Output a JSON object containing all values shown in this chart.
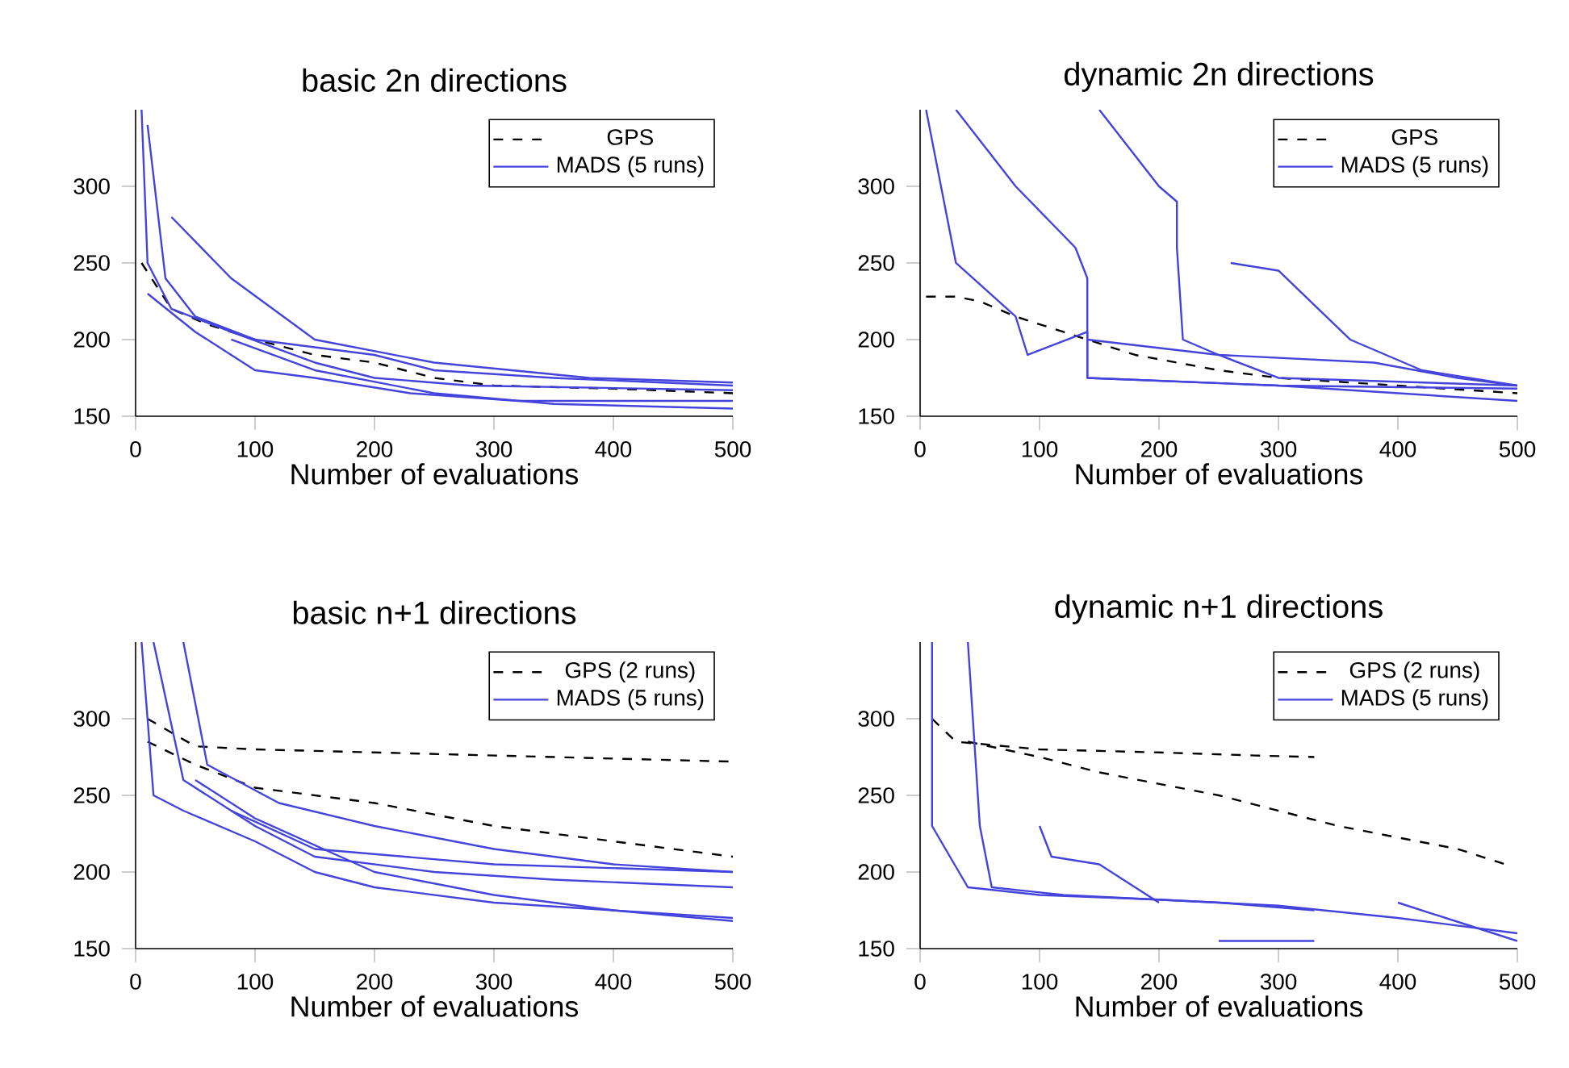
{
  "chart_data": [
    {
      "type": "line",
      "title": "basic 2n directions",
      "xlabel": "Number of evaluations",
      "xlim": [
        0,
        500
      ],
      "xticks": [
        0,
        100,
        200,
        300,
        400,
        500
      ],
      "ylim": [
        150,
        350
      ],
      "yticks": [
        150,
        200,
        250,
        300
      ],
      "legend": "top right",
      "series": [
        {
          "name": "GPS",
          "color": "#000000",
          "line_style": "dashed",
          "x": [
            5,
            30,
            60,
            100,
            150,
            200,
            250,
            300,
            400,
            500
          ],
          "values": [
            250,
            220,
            210,
            200,
            190,
            185,
            175,
            170,
            168,
            165
          ]
        },
        {
          "name": "MADS (5 runs)",
          "color": "#4444dd",
          "line_style": "solid",
          "x": [
            5,
            10,
            30,
            80,
            150,
            200,
            280,
            500
          ],
          "values": [
            350,
            250,
            220,
            205,
            185,
            175,
            170,
            167
          ]
        },
        {
          "color": "#4444dd",
          "line_style": "solid",
          "x": [
            10,
            25,
            50,
            100,
            200,
            250,
            350,
            500
          ],
          "values": [
            340,
            240,
            215,
            200,
            190,
            180,
            175,
            170
          ]
        },
        {
          "color": "#4444dd",
          "line_style": "solid",
          "x": [
            30,
            80,
            150,
            250,
            380,
            500
          ],
          "values": [
            280,
            240,
            200,
            185,
            175,
            172
          ]
        },
        {
          "color": "#4444dd",
          "line_style": "solid",
          "x": [
            10,
            50,
            100,
            150,
            230,
            320,
            500
          ],
          "values": [
            230,
            205,
            180,
            175,
            165,
            160,
            160
          ]
        },
        {
          "color": "#4444dd",
          "line_style": "solid",
          "x": [
            80,
            150,
            250,
            350,
            500
          ],
          "values": [
            200,
            180,
            165,
            158,
            155
          ]
        }
      ]
    },
    {
      "type": "line",
      "title": "dynamic 2n directions",
      "xlabel": "Number of evaluations",
      "xlim": [
        0,
        500
      ],
      "xticks": [
        0,
        100,
        200,
        300,
        400,
        500
      ],
      "ylim": [
        150,
        350
      ],
      "yticks": [
        150,
        200,
        250,
        300
      ],
      "legend": "top right",
      "series": [
        {
          "name": "GPS",
          "color": "#000000",
          "line_style": "dashed",
          "x": [
            5,
            30,
            50,
            80,
            120,
            180,
            250,
            300,
            400,
            500
          ],
          "values": [
            228,
            228,
            225,
            215,
            205,
            190,
            180,
            175,
            170,
            165
          ]
        },
        {
          "name": "MADS (5 runs)",
          "color": "#4444dd",
          "line_style": "solid",
          "x": [
            5,
            30,
            80,
            90,
            140,
            140,
            300,
            500
          ],
          "values": [
            350,
            250,
            215,
            190,
            205,
            175,
            170,
            168
          ]
        },
        {
          "color": "#4444dd",
          "line_style": "solid",
          "x": [
            30,
            80,
            130,
            140,
            140,
            300,
            500
          ],
          "values": [
            350,
            300,
            260,
            240,
            175,
            170,
            160
          ]
        },
        {
          "color": "#4444dd",
          "line_style": "solid",
          "x": [
            150,
            200,
            215,
            215,
            220,
            250,
            300,
            500
          ],
          "values": [
            350,
            300,
            290,
            260,
            200,
            190,
            175,
            170
          ]
        },
        {
          "color": "#4444dd",
          "line_style": "solid",
          "x": [
            260,
            300,
            360,
            420,
            500
          ],
          "values": [
            250,
            245,
            200,
            180,
            170
          ]
        },
        {
          "color": "#4444dd",
          "line_style": "solid",
          "x": [
            140,
            250,
            380,
            450,
            500
          ],
          "values": [
            200,
            190,
            185,
            175,
            170
          ]
        }
      ]
    },
    {
      "type": "line",
      "title": "basic n+1 directions",
      "xlabel": "Number of evaluations",
      "xlim": [
        0,
        500
      ],
      "xticks": [
        0,
        100,
        200,
        300,
        400,
        500
      ],
      "ylim": [
        150,
        350
      ],
      "yticks": [
        150,
        200,
        250,
        300
      ],
      "legend": "top right",
      "series": [
        {
          "name": "GPS (2 runs)",
          "color": "#000000",
          "line_style": "dashed",
          "x": [
            10,
            50,
            100,
            200,
            300,
            400,
            500
          ],
          "values": [
            300,
            282,
            280,
            278,
            276,
            274,
            272
          ]
        },
        {
          "color": "#000000",
          "line_style": "dashed",
          "x": [
            10,
            50,
            100,
            200,
            300,
            400,
            500
          ],
          "values": [
            285,
            270,
            255,
            245,
            230,
            220,
            210
          ]
        },
        {
          "name": "MADS (5 runs)",
          "color": "#4444dd",
          "line_style": "solid",
          "x": [
            5,
            15,
            40,
            100,
            150,
            200,
            300,
            400,
            500
          ],
          "values": [
            350,
            250,
            240,
            220,
            200,
            190,
            180,
            175,
            168
          ]
        },
        {
          "color": "#4444dd",
          "line_style": "solid",
          "x": [
            15,
            40,
            100,
            150,
            250,
            350,
            500
          ],
          "values": [
            350,
            260,
            230,
            210,
            200,
            195,
            190
          ]
        },
        {
          "color": "#4444dd",
          "line_style": "solid",
          "x": [
            40,
            60,
            120,
            200,
            300,
            400,
            500
          ],
          "values": [
            350,
            270,
            245,
            230,
            215,
            205,
            200
          ]
        },
        {
          "color": "#4444dd",
          "line_style": "solid",
          "x": [
            50,
            100,
            200,
            300,
            400,
            500
          ],
          "values": [
            260,
            235,
            200,
            185,
            175,
            170
          ]
        },
        {
          "color": "#4444dd",
          "line_style": "solid",
          "x": [
            80,
            150,
            300,
            500
          ],
          "values": [
            240,
            215,
            205,
            200
          ]
        }
      ]
    },
    {
      "type": "line",
      "title": "dynamic n+1 directions",
      "xlabel": "Number of evaluations",
      "xlim": [
        0,
        500
      ],
      "xticks": [
        0,
        100,
        200,
        300,
        400,
        500
      ],
      "ylim": [
        150,
        350
      ],
      "yticks": [
        150,
        200,
        250,
        300
      ],
      "legend": "top right",
      "series": [
        {
          "name": "GPS (2 runs)",
          "color": "#000000",
          "line_style": "dashed",
          "x": [
            10,
            30,
            100,
            200,
            280,
            330
          ],
          "values": [
            300,
            285,
            280,
            278,
            276,
            275
          ]
        },
        {
          "color": "#000000",
          "line_style": "dashed",
          "x": [
            40,
            100,
            150,
            250,
            350,
            450,
            490
          ],
          "values": [
            285,
            275,
            265,
            250,
            230,
            215,
            205
          ]
        },
        {
          "name": "MADS (5 runs)",
          "color": "#4444dd",
          "line_style": "solid",
          "x": [
            10,
            10,
            40,
            100,
            200,
            300,
            400,
            500
          ],
          "values": [
            350,
            230,
            190,
            185,
            182,
            178,
            170,
            160
          ]
        },
        {
          "color": "#4444dd",
          "line_style": "solid",
          "x": [
            40,
            50,
            60,
            120,
            250,
            330
          ],
          "values": [
            350,
            230,
            190,
            185,
            180,
            175
          ]
        },
        {
          "color": "#4444dd",
          "line_style": "solid",
          "x": [
            100,
            110,
            150,
            200
          ],
          "values": [
            230,
            210,
            205,
            180
          ]
        },
        {
          "color": "#4444dd",
          "line_style": "solid",
          "x": [
            250,
            330
          ],
          "values": [
            155,
            155
          ]
        },
        {
          "color": "#4444dd",
          "line_style": "solid",
          "x": [
            400,
            460,
            500
          ],
          "values": [
            180,
            165,
            155
          ]
        }
      ]
    }
  ]
}
